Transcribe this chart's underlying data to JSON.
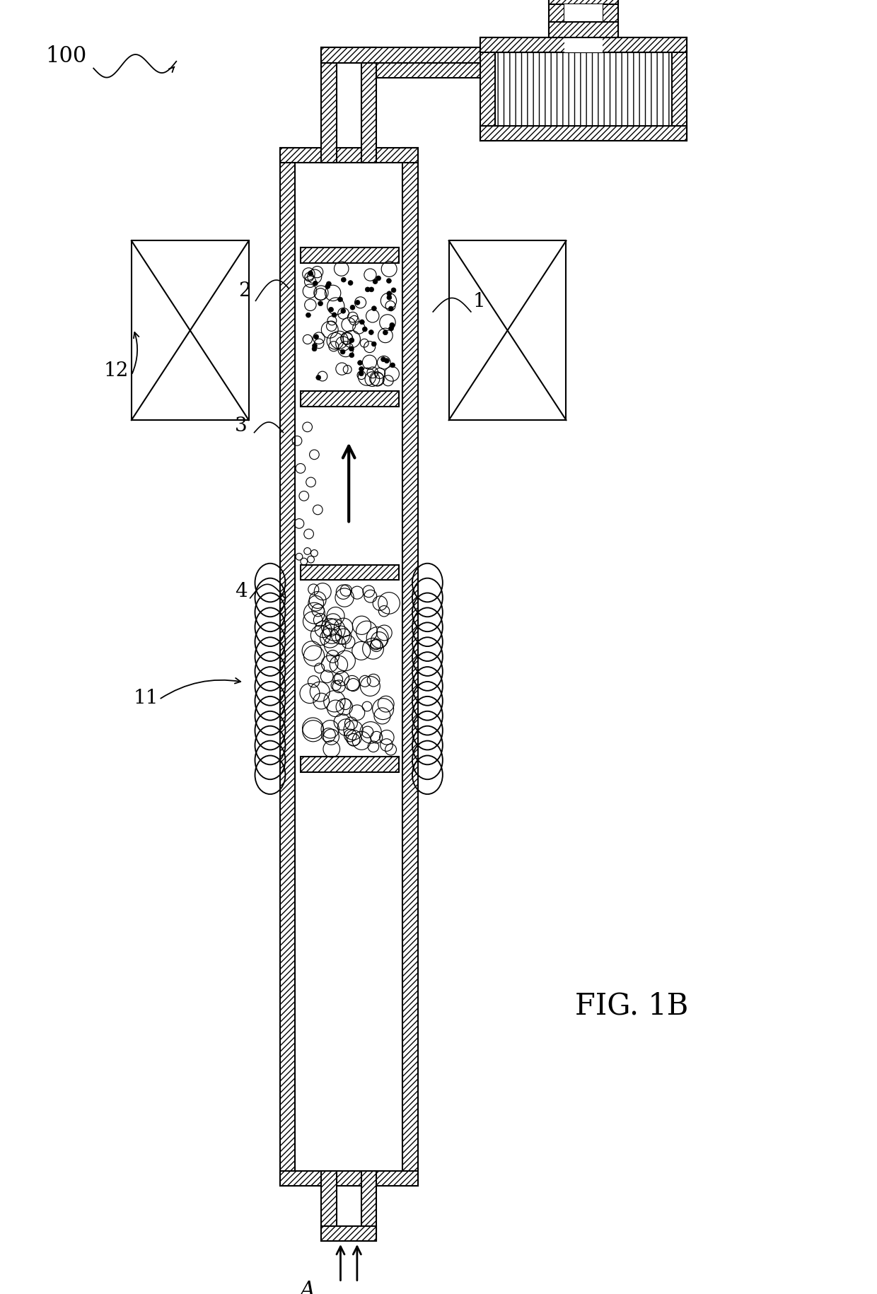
{
  "fig_label": "FIG. 1B",
  "label_100": "100",
  "label_1": "1",
  "label_2": "2",
  "label_3": "3",
  "label_4": "4",
  "label_11": "11",
  "label_12": "12",
  "label_A": "A",
  "bg_color": "#ffffff",
  "line_color": "#000000",
  "fig_label_fontsize": 30,
  "annot_fontsize": 20,
  "lw": 1.5,
  "wall": 0.022
}
